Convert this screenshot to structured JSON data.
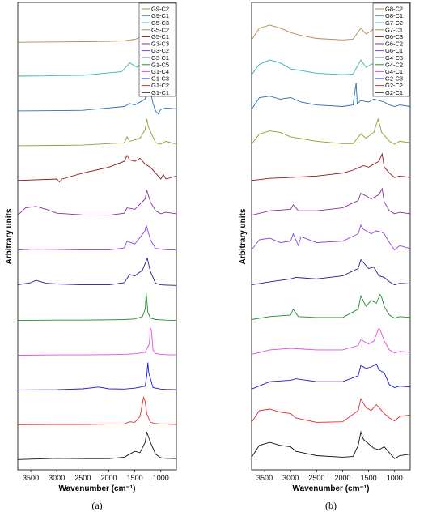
{
  "chart_data": [
    {
      "type": "line",
      "panel_label": "(a)",
      "xlabel": "Wavenumber (cm⁻¹)",
      "ylabel": "Arbitrary units",
      "xlim": [
        3750,
        700
      ],
      "x_reversed": true,
      "xticks": [
        3500,
        3000,
        2500,
        2000,
        1500,
        1000
      ],
      "legend_position": "top-right",
      "series": [
        {
          "name": "G9-C2",
          "color": "#b5894a",
          "x": [
            3750,
            3000,
            2500,
            2000,
            1700,
            1500,
            1400,
            1300,
            1260,
            1200,
            1100,
            1000,
            900,
            700
          ],
          "y": [
            0.02,
            0.03,
            0.04,
            0.05,
            0.07,
            0.12,
            0.18,
            0.38,
            0.95,
            0.3,
            0.1,
            0.05,
            0.04,
            0.03
          ]
        },
        {
          "name": "G9-C1",
          "color": "#3ab0b0",
          "x": [
            3750,
            3200,
            3000,
            2500,
            1750,
            1650,
            1600,
            1450,
            1400,
            1300,
            1240,
            1200,
            1150,
            1050,
            1000,
            900,
            700
          ],
          "y": [
            0.05,
            0.06,
            0.07,
            0.08,
            0.2,
            0.4,
            0.5,
            0.35,
            0.45,
            0.55,
            0.95,
            0.4,
            0.1,
            0.2,
            0.18,
            0.1,
            0.08
          ]
        },
        {
          "name": "G5-C3",
          "color": "#2a6fb5",
          "x": [
            3750,
            3000,
            2500,
            1700,
            1600,
            1500,
            1300,
            1250,
            1220,
            1150,
            1100,
            1050,
            1000,
            900,
            700
          ],
          "y": [
            0.05,
            0.06,
            0.07,
            0.2,
            0.3,
            0.25,
            0.45,
            0.95,
            0.9,
            0.3,
            0.05,
            -0.05,
            0.1,
            0.15,
            0.12
          ]
        },
        {
          "name": "G5-C2",
          "color": "#999a2e",
          "x": [
            3750,
            3000,
            2500,
            1700,
            1650,
            1600,
            1400,
            1300,
            1270,
            1240,
            1100,
            1000,
            900,
            700
          ],
          "y": [
            0.05,
            0.06,
            0.07,
            0.15,
            0.35,
            0.2,
            0.3,
            0.6,
            0.95,
            0.7,
            0.15,
            0.1,
            0.2,
            0.1
          ]
        },
        {
          "name": "G5-C1",
          "color": "#8b1a1a",
          "x": [
            3750,
            3000,
            2950,
            2900,
            2500,
            2000,
            1700,
            1650,
            1600,
            1500,
            1400,
            1300,
            1200,
            1100,
            1000,
            950,
            900,
            700
          ],
          "y": [
            0.05,
            0.1,
            0.0,
            0.1,
            0.3,
            0.5,
            0.7,
            0.9,
            0.75,
            0.7,
            0.8,
            0.6,
            0.5,
            0.3,
            0.1,
            0.25,
            0.1,
            0.2
          ]
        },
        {
          "name": "G3-C3",
          "color": "#8a2d9e",
          "x": [
            3750,
            3600,
            3400,
            3200,
            3000,
            2500,
            2000,
            1700,
            1650,
            1500,
            1300,
            1270,
            1200,
            1100,
            1000,
            900,
            700
          ],
          "y": [
            0.05,
            0.3,
            0.35,
            0.25,
            0.12,
            0.06,
            0.05,
            0.12,
            0.3,
            0.25,
            0.6,
            0.9,
            0.5,
            0.2,
            0.1,
            0.15,
            0.1
          ]
        },
        {
          "name": "G3-C2",
          "color": "#8e44e0",
          "x": [
            3750,
            3400,
            3000,
            2500,
            2000,
            1700,
            1650,
            1500,
            1300,
            1280,
            1200,
            1100,
            1000,
            900,
            700
          ],
          "y": [
            0.05,
            0.08,
            0.07,
            0.05,
            0.05,
            0.12,
            0.35,
            0.25,
            0.7,
            0.9,
            0.4,
            0.1,
            0.08,
            0.06,
            0.05
          ]
        },
        {
          "name": "G3-C1",
          "color": "#1c1c8c",
          "x": [
            3750,
            3500,
            3400,
            3200,
            3000,
            2500,
            2000,
            1700,
            1600,
            1500,
            1350,
            1260,
            1200,
            1100,
            1000,
            900,
            700
          ],
          "y": [
            0.05,
            0.12,
            0.2,
            0.1,
            0.08,
            0.05,
            0.05,
            0.12,
            0.4,
            0.35,
            0.55,
            0.95,
            0.5,
            0.1,
            0.05,
            0.04,
            0.03
          ]
        },
        {
          "name": "G1-C5",
          "color": "#1f8f2a",
          "x": [
            3750,
            3000,
            2500,
            2000,
            1700,
            1500,
            1350,
            1300,
            1280,
            1250,
            1200,
            1100,
            1000,
            900,
            700
          ],
          "y": [
            0.02,
            0.03,
            0.03,
            0.04,
            0.05,
            0.07,
            0.15,
            0.4,
            0.95,
            0.3,
            0.1,
            0.05,
            0.04,
            0.03,
            0.02
          ]
        },
        {
          "name": "G1-C4",
          "color": "#e04ce0",
          "x": [
            3750,
            3000,
            2500,
            2000,
            1700,
            1500,
            1300,
            1220,
            1200,
            1180,
            1150,
            1100,
            1000,
            900,
            700
          ],
          "y": [
            0.02,
            0.03,
            0.03,
            0.04,
            0.05,
            0.07,
            0.12,
            0.4,
            0.95,
            0.85,
            0.2,
            0.08,
            0.05,
            0.04,
            0.03
          ]
        },
        {
          "name": "G1-C3",
          "color": "#1a1ae0",
          "x": [
            3750,
            3000,
            2500,
            2200,
            2000,
            1700,
            1500,
            1300,
            1270,
            1250,
            1230,
            1150,
            1000,
            900,
            700
          ],
          "y": [
            0.02,
            0.03,
            0.06,
            0.12,
            0.06,
            0.05,
            0.08,
            0.15,
            0.5,
            0.95,
            0.6,
            0.1,
            0.05,
            0.04,
            0.03
          ]
        },
        {
          "name": "G1-C2",
          "color": "#e02a2a",
          "x": [
            3750,
            3000,
            2500,
            2000,
            1700,
            1600,
            1500,
            1400,
            1330,
            1300,
            1270,
            1200,
            1100,
            1000,
            900,
            700
          ],
          "y": [
            0.02,
            0.03,
            0.03,
            0.04,
            0.05,
            0.12,
            0.1,
            0.3,
            0.95,
            0.8,
            0.4,
            0.1,
            0.06,
            0.05,
            0.04,
            0.03
          ]
        },
        {
          "name": "G1-C1",
          "color": "#111111",
          "x": [
            3750,
            3000,
            2500,
            2000,
            1700,
            1600,
            1500,
            1400,
            1300,
            1270,
            1250,
            1200,
            1100,
            1000,
            900,
            700
          ],
          "y": [
            0.02,
            0.06,
            0.05,
            0.05,
            0.1,
            0.2,
            0.3,
            0.25,
            0.6,
            0.95,
            0.85,
            0.6,
            0.2,
            0.08,
            0.06,
            0.05
          ]
        }
      ]
    },
    {
      "type": "line",
      "panel_label": "(b)",
      "xlabel": "Wavenumber (cm⁻¹)",
      "ylabel": "Arbitrary units",
      "xlim": [
        3750,
        700
      ],
      "x_reversed": true,
      "xticks": [
        3500,
        3000,
        2500,
        2000,
        1500,
        1000
      ],
      "legend_position": "top-right",
      "series": [
        {
          "name": "G8-C2",
          "color": "#b5894a",
          "x": [
            3750,
            3600,
            3400,
            3200,
            3000,
            2800,
            2500,
            2000,
            1800,
            1650,
            1550,
            1450,
            1350,
            1280,
            1200,
            1100,
            1000,
            900,
            700
          ],
          "y": [
            0.1,
            0.5,
            0.6,
            0.5,
            0.35,
            0.25,
            0.15,
            0.1,
            0.12,
            0.5,
            0.3,
            0.4,
            0.6,
            0.95,
            0.8,
            0.4,
            0.2,
            0.25,
            0.2
          ]
        },
        {
          "name": "G8-C1",
          "color": "#3ab0b0",
          "x": [
            3750,
            3600,
            3400,
            3200,
            3000,
            2500,
            2000,
            1800,
            1650,
            1550,
            1450,
            1350,
            1250,
            1200,
            1100,
            1000,
            900,
            700
          ],
          "y": [
            0.1,
            0.45,
            0.6,
            0.5,
            0.3,
            0.15,
            0.1,
            0.12,
            0.6,
            0.35,
            0.45,
            0.5,
            0.9,
            0.85,
            0.5,
            0.2,
            0.3,
            0.25
          ]
        },
        {
          "name": "G7-C2",
          "color": "#2a6fb5",
          "x": [
            3750,
            3600,
            3400,
            3200,
            3000,
            2800,
            2500,
            2000,
            1800,
            1740,
            1720,
            1650,
            1500,
            1400,
            1300,
            1200,
            1100,
            1000,
            900,
            700
          ],
          "y": [
            0.1,
            0.5,
            0.55,
            0.45,
            0.5,
            0.35,
            0.25,
            0.2,
            0.25,
            1.0,
            0.3,
            0.4,
            0.35,
            0.45,
            0.4,
            0.35,
            0.25,
            0.2,
            0.25,
            0.2
          ]
        },
        {
          "name": "G7-C1",
          "color": "#999a2e",
          "x": [
            3750,
            3600,
            3400,
            3200,
            3000,
            2500,
            2000,
            1800,
            1650,
            1550,
            1400,
            1320,
            1300,
            1250,
            1100,
            1000,
            900,
            700
          ],
          "y": [
            0.1,
            0.45,
            0.55,
            0.5,
            0.35,
            0.2,
            0.12,
            0.12,
            0.45,
            0.3,
            0.5,
            0.95,
            0.85,
            0.5,
            0.2,
            0.1,
            0.2,
            0.15
          ]
        },
        {
          "name": "G6-C3",
          "color": "#8b1a1a",
          "x": [
            3750,
            3400,
            3000,
            2500,
            2000,
            1800,
            1600,
            1500,
            1400,
            1300,
            1240,
            1200,
            1100,
            1000,
            900,
            700
          ],
          "y": [
            0.05,
            0.12,
            0.15,
            0.2,
            0.3,
            0.4,
            0.55,
            0.5,
            0.6,
            0.7,
            0.95,
            0.5,
            0.3,
            0.15,
            0.2,
            0.15
          ]
        },
        {
          "name": "G6-C2",
          "color": "#8a2d9e",
          "x": [
            3750,
            3400,
            3000,
            2950,
            2850,
            2500,
            2000,
            1700,
            1650,
            1600,
            1550,
            1450,
            1300,
            1240,
            1200,
            1100,
            1000,
            900,
            700
          ],
          "y": [
            0.05,
            0.2,
            0.25,
            0.4,
            0.2,
            0.2,
            0.3,
            0.55,
            0.8,
            0.75,
            0.7,
            0.6,
            0.75,
            0.95,
            0.5,
            0.2,
            0.1,
            0.15,
            0.1
          ]
        },
        {
          "name": "G6-C1",
          "color": "#8e44e0",
          "x": [
            3750,
            3600,
            3400,
            3200,
            3000,
            2950,
            2850,
            2800,
            2500,
            2000,
            1700,
            1650,
            1600,
            1450,
            1350,
            1250,
            1200,
            1100,
            1000,
            900,
            700
          ],
          "y": [
            0.05,
            0.4,
            0.45,
            0.3,
            0.35,
            0.6,
            0.2,
            0.5,
            0.3,
            0.35,
            0.6,
            0.9,
            0.75,
            0.6,
            0.7,
            0.65,
            0.6,
            0.3,
            0.05,
            0.2,
            0.1
          ]
        },
        {
          "name": "G4-C3",
          "color": "#1c1c8c",
          "x": [
            3750,
            3400,
            3000,
            2900,
            2500,
            2000,
            1700,
            1650,
            1500,
            1400,
            1300,
            1200,
            1100,
            1000,
            900,
            700
          ],
          "y": [
            0.05,
            0.15,
            0.25,
            0.3,
            0.25,
            0.35,
            0.6,
            0.9,
            0.6,
            0.65,
            0.35,
            0.3,
            0.15,
            0.05,
            0.1,
            0.08
          ]
        },
        {
          "name": "G4-C2",
          "color": "#1f8f2a",
          "x": [
            3750,
            3400,
            3000,
            2950,
            2850,
            2500,
            2000,
            1700,
            1650,
            1550,
            1450,
            1350,
            1280,
            1250,
            1200,
            1100,
            1000,
            900,
            700
          ],
          "y": [
            0.05,
            0.15,
            0.2,
            0.4,
            0.15,
            0.12,
            0.12,
            0.4,
            0.85,
            0.5,
            0.7,
            0.6,
            0.9,
            0.8,
            0.5,
            0.2,
            0.1,
            0.15,
            0.12
          ]
        },
        {
          "name": "G4-C1",
          "color": "#e04ce0",
          "x": [
            3750,
            3400,
            3000,
            2500,
            2000,
            1700,
            1650,
            1500,
            1400,
            1300,
            1260,
            1200,
            1100,
            1000,
            900,
            700
          ],
          "y": [
            0.05,
            0.2,
            0.25,
            0.2,
            0.2,
            0.35,
            0.55,
            0.4,
            0.5,
            0.95,
            0.8,
            0.5,
            0.2,
            0.1,
            0.15,
            0.12
          ]
        },
        {
          "name": "G2-C3",
          "color": "#1a1ae0",
          "x": [
            3750,
            3400,
            3000,
            2900,
            2500,
            2000,
            1700,
            1650,
            1550,
            1450,
            1350,
            1300,
            1200,
            1100,
            1000,
            900,
            700
          ],
          "y": [
            0.05,
            0.3,
            0.35,
            0.4,
            0.3,
            0.3,
            0.5,
            0.85,
            0.75,
            0.8,
            0.9,
            0.7,
            0.6,
            0.2,
            0.1,
            0.15,
            0.12
          ]
        },
        {
          "name": "G2-C2",
          "color": "#e02a2a",
          "x": [
            3750,
            3600,
            3400,
            3200,
            3000,
            2900,
            2500,
            2000,
            1700,
            1650,
            1550,
            1450,
            1350,
            1300,
            1200,
            1100,
            1000,
            900,
            700
          ],
          "y": [
            0.1,
            0.5,
            0.55,
            0.45,
            0.4,
            0.25,
            0.1,
            0.12,
            0.5,
            0.9,
            0.6,
            0.5,
            0.7,
            0.6,
            0.4,
            0.25,
            0.15,
            0.3,
            0.35
          ]
        },
        {
          "name": "G2-C1",
          "color": "#111111",
          "x": [
            3750,
            3600,
            3400,
            3200,
            3000,
            2900,
            2500,
            2000,
            1800,
            1700,
            1650,
            1600,
            1400,
            1300,
            1200,
            1100,
            1000,
            900,
            700
          ],
          "y": [
            0.1,
            0.5,
            0.6,
            0.5,
            0.45,
            0.3,
            0.15,
            0.1,
            0.12,
            0.5,
            0.95,
            0.7,
            0.4,
            0.35,
            0.45,
            0.25,
            0.05,
            0.15,
            0.2
          ]
        }
      ]
    }
  ]
}
